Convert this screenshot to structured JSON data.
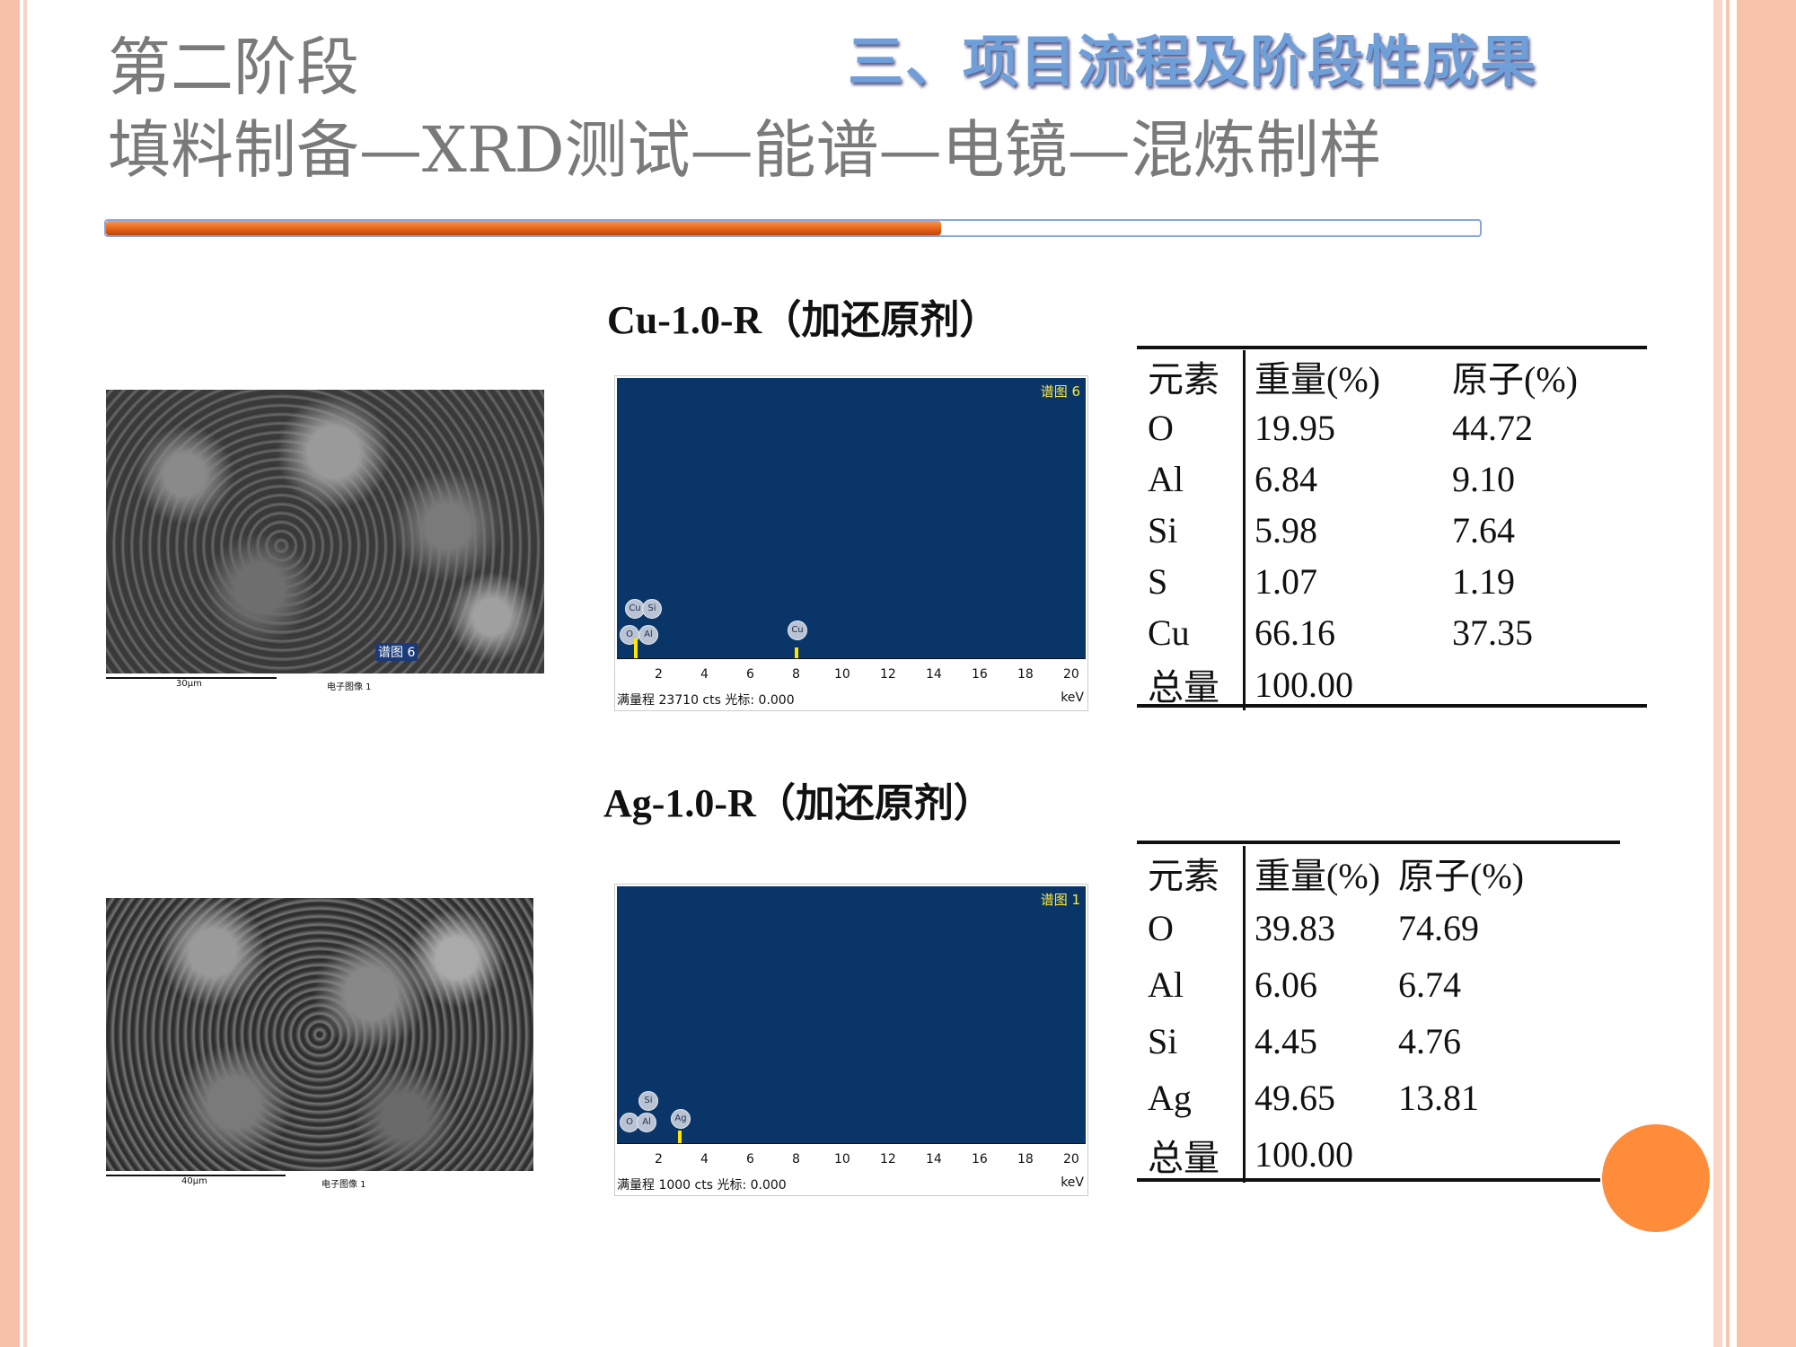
{
  "slide": {
    "heading_line1": "第二阶段",
    "heading_line2": "填料制备—XRD测试—能谱—电镜—混炼制样",
    "section_title": "三、项目流程及阶段性成果",
    "colors": {
      "accent_orange": "#e8611a",
      "accent_blue": "#6f9fd8",
      "spectrum_bg": "#0a3568"
    }
  },
  "samples": [
    {
      "title": "Cu-1.0-R（加还原剂）",
      "sem": {
        "scale": "30μm",
        "caption": "电子图像 1",
        "spectrum_tag": "谱图 6"
      },
      "spectrum": {
        "tag": "谱图 6",
        "footer": "满量程 23710 cts 光标: 0.000",
        "unit": "keV",
        "ticks": [
          "2",
          "4",
          "6",
          "8",
          "10",
          "12",
          "14",
          "16",
          "18",
          "20"
        ],
        "peaks": [
          "O",
          "Al",
          "Cu",
          "Si",
          "Cu"
        ]
      },
      "table": {
        "headers": [
          "元素",
          "重量(%)",
          "原子(%)"
        ],
        "rows": [
          [
            "O",
            "19.95",
            "44.72"
          ],
          [
            "Al",
            "6.84",
            "9.10"
          ],
          [
            "Si",
            "5.98",
            "7.64"
          ],
          [
            "S",
            "1.07",
            "1.19"
          ],
          [
            "Cu",
            "66.16",
            "37.35"
          ],
          [
            "总量",
            "100.00",
            ""
          ]
        ]
      }
    },
    {
      "title": "Ag-1.0-R（加还原剂）",
      "sem": {
        "scale": "40μm",
        "caption": "电子图像 1"
      },
      "spectrum": {
        "tag": "谱图 1",
        "footer": "满量程 1000 cts 光标: 0.000",
        "unit": "keV",
        "ticks": [
          "2",
          "4",
          "6",
          "8",
          "10",
          "12",
          "14",
          "16",
          "18",
          "20"
        ],
        "peaks": [
          "O",
          "Al",
          "Si",
          "Ag"
        ]
      },
      "table": {
        "headers": [
          "元素",
          "重量(%)",
          "原子(%)"
        ],
        "rows": [
          [
            "O",
            "39.83",
            "74.69"
          ],
          [
            "Al",
            "6.06",
            "6.74"
          ],
          [
            "Si",
            "4.45",
            "4.76"
          ],
          [
            "Ag",
            "49.65",
            "13.81"
          ],
          [
            "总量",
            "100.00",
            ""
          ]
        ]
      }
    }
  ]
}
